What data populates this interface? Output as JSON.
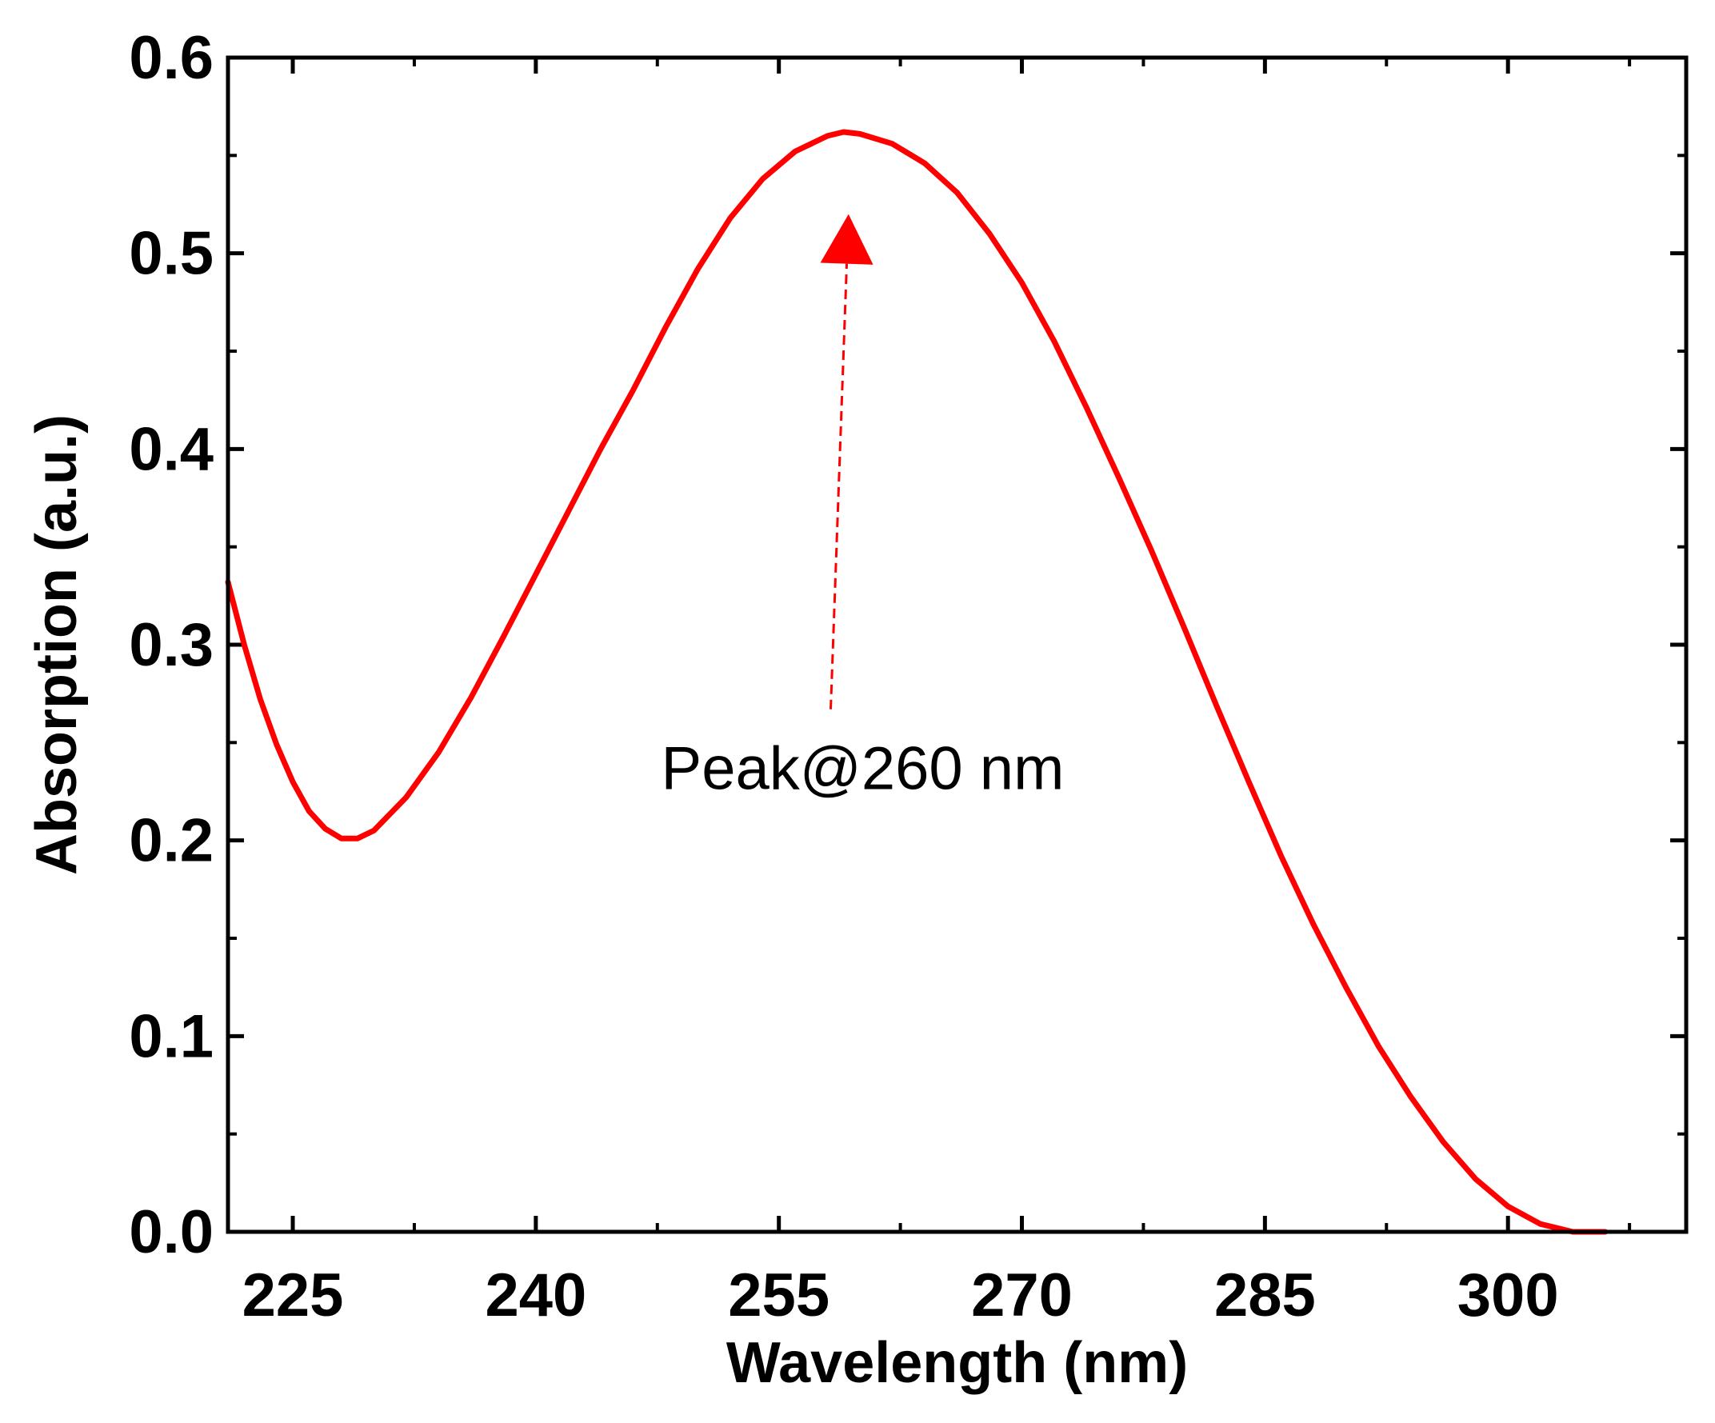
{
  "chart_data": {
    "type": "line",
    "title": "",
    "xlabel": "Wavelength (nm)",
    "ylabel": "Absorption (a.u.)",
    "xlim": [
      221,
      311
    ],
    "ylim": [
      0,
      0.6
    ],
    "x_ticks": [
      225,
      240,
      255,
      270,
      285,
      300
    ],
    "x_tick_labels": [
      "225",
      "240",
      "255",
      "270",
      "285",
      "300"
    ],
    "y_ticks": [
      0,
      0.1,
      0.2,
      0.3,
      0.4,
      0.5,
      0.6
    ],
    "y_tick_labels": [
      "0.0",
      "0.1",
      "0.2",
      "0.3",
      "0.4",
      "0.5",
      "0.6"
    ],
    "grid": false,
    "legend": "none",
    "series": [
      {
        "color": "#ff0000",
        "x": [
          221,
          222,
          223,
          224,
          225,
          226,
          227,
          228,
          229,
          230,
          232,
          234,
          236,
          238,
          240,
          242,
          244,
          246,
          248,
          250,
          252,
          254,
          256,
          258,
          259,
          260,
          262,
          264,
          266,
          268,
          270,
          272,
          274,
          276,
          278,
          280,
          282,
          284,
          286,
          288,
          290,
          292,
          294,
          296,
          298,
          300,
          302,
          304,
          305,
          306
        ],
        "y": [
          0.332,
          0.3,
          0.272,
          0.249,
          0.23,
          0.215,
          0.206,
          0.201,
          0.201,
          0.205,
          0.222,
          0.245,
          0.273,
          0.304,
          0.336,
          0.368,
          0.4,
          0.43,
          0.462,
          0.492,
          0.518,
          0.538,
          0.552,
          0.56,
          0.562,
          0.561,
          0.556,
          0.546,
          0.531,
          0.51,
          0.485,
          0.455,
          0.421,
          0.385,
          0.348,
          0.309,
          0.269,
          0.23,
          0.192,
          0.157,
          0.125,
          0.095,
          0.069,
          0.046,
          0.027,
          0.013,
          0.004,
          0.0,
          0.0,
          0.0
        ]
      }
    ],
    "annotations": [
      {
        "text": "Peak@260 nm",
        "arrow_to": [
          259.3,
          0.52
        ],
        "arrow_from": [
          258.2,
          0.267
        ],
        "arrow_style": "dashed",
        "color": "#ff0000"
      }
    ]
  }
}
